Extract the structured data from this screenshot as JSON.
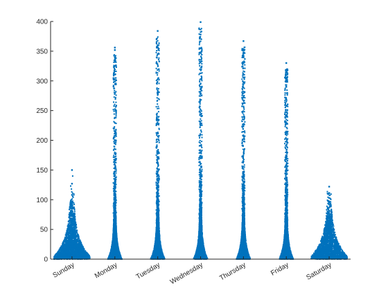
{
  "chart_data": {
    "type": "scatter",
    "subtype": "swarm / jitter strip plot by day of week",
    "title": "",
    "xlabel": "",
    "ylabel": "",
    "categories": [
      "Sunday",
      "Monday",
      "Tuesday",
      "Wednesday",
      "Thursday",
      "Friday",
      "Saturday"
    ],
    "ylim": [
      0,
      400
    ],
    "yticks": [
      0,
      50,
      100,
      150,
      200,
      250,
      300,
      350,
      400
    ],
    "grid": false,
    "legend": "none",
    "marker_color": "#0072BD",
    "groups": [
      {
        "category": "Sunday",
        "max": 150,
        "outliers": [
          150,
          127,
          108
        ]
      },
      {
        "category": "Monday",
        "max": 356,
        "outliers": [
          356,
          352,
          340,
          332
        ]
      },
      {
        "category": "Tuesday",
        "max": 384,
        "outliers": [
          384,
          360,
          356,
          345
        ]
      },
      {
        "category": "Wednesday",
        "max": 399,
        "outliers": [
          399,
          378,
          355,
          348
        ]
      },
      {
        "category": "Thursday",
        "max": 367,
        "outliers": [
          367,
          348,
          343,
          330
        ]
      },
      {
        "category": "Friday",
        "max": 330,
        "outliers": [
          330,
          310,
          305,
          290
        ]
      },
      {
        "category": "Saturday",
        "max": 122,
        "outliers": [
          122,
          111,
          103,
          95
        ]
      }
    ]
  }
}
